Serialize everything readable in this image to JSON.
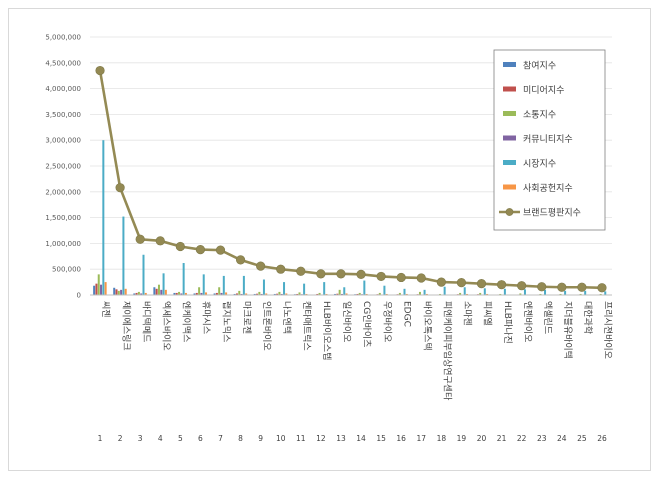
{
  "chart_data": {
    "type": "bar",
    "title": "",
    "xlabel": "",
    "ylabel": "",
    "ylim": [
      0,
      5000000
    ],
    "yticks": [
      "0",
      "500,000",
      "1,000,000",
      "1,500,000",
      "2,000,000",
      "2,500,000",
      "3,000,000",
      "3,500,000",
      "4,000,000",
      "4,500,000",
      "5,000,000"
    ],
    "ytick_values": [
      0,
      500000,
      1000000,
      1500000,
      2000000,
      2500000,
      3000000,
      3500000,
      4000000,
      4500000,
      5000000
    ],
    "legend_position": "top-right",
    "categories": [
      "씨젠",
      "제이에스링크",
      "바디텍메드",
      "엑세스바이오",
      "엔케이맥스",
      "휴마시스",
      "랩지노믹스",
      "마크로젠",
      "인트론바이오",
      "나노엔텍",
      "켄타매트릭스",
      "HLB바이오스텝",
      "일신바이오",
      "CG인바이츠",
      "우정바이오",
      "EDGC",
      "바이오톡스텍",
      "피엔케이피부임상연구센타",
      "소마젠",
      "피씨엘",
      "HLB파나진",
      "엔젠바이오",
      "엑셀린드",
      "지더블유바이텍",
      "대한과학",
      "프리시젼바이오"
    ],
    "indices": [
      "1",
      "2",
      "3",
      "4",
      "5",
      "6",
      "7",
      "8",
      "9",
      "10",
      "11",
      "12",
      "13",
      "14",
      "15",
      "16",
      "17",
      "18",
      "19",
      "20",
      "21",
      "22",
      "23",
      "24",
      "25",
      "26"
    ],
    "series": [
      {
        "name": "참여지수",
        "kind": "bar",
        "color": "#4f81bd",
        "values": [
          180000,
          140000,
          30000,
          150000,
          40000,
          30000,
          30000,
          20000,
          20000,
          20000,
          15000,
          10000,
          20000,
          15000,
          10000,
          10000,
          10000,
          5000,
          10000,
          10000,
          5000,
          5000,
          5000,
          5000,
          5000,
          5000
        ]
      },
      {
        "name": "미디어지수",
        "kind": "bar",
        "color": "#c0504d",
        "values": [
          220000,
          110000,
          40000,
          120000,
          40000,
          40000,
          40000,
          30000,
          25000,
          25000,
          20000,
          20000,
          25000,
          20000,
          15000,
          15000,
          15000,
          10000,
          15000,
          15000,
          10000,
          10000,
          10000,
          10000,
          10000,
          10000
        ]
      },
      {
        "name": "소통지수",
        "kind": "bar",
        "color": "#9bbb59",
        "values": [
          400000,
          80000,
          60000,
          200000,
          60000,
          150000,
          150000,
          80000,
          60000,
          60000,
          50000,
          40000,
          100000,
          40000,
          40000,
          40000,
          60000,
          20000,
          40000,
          40000,
          20000,
          30000,
          20000,
          20000,
          20000,
          20000
        ]
      },
      {
        "name": "커뮤니티지수",
        "kind": "bar",
        "color": "#8064a2",
        "values": [
          200000,
          100000,
          30000,
          100000,
          30000,
          40000,
          40000,
          20000,
          20000,
          20000,
          15000,
          10000,
          20000,
          15000,
          10000,
          10000,
          10000,
          5000,
          10000,
          10000,
          5000,
          5000,
          5000,
          5000,
          5000,
          5000
        ]
      },
      {
        "name": "시장지수",
        "kind": "bar",
        "color": "#4bacc6",
        "values": [
          3000000,
          1520000,
          780000,
          420000,
          620000,
          400000,
          370000,
          370000,
          300000,
          250000,
          220000,
          250000,
          150000,
          280000,
          180000,
          120000,
          100000,
          160000,
          150000,
          130000,
          120000,
          110000,
          100000,
          80000,
          80000,
          70000
        ]
      },
      {
        "name": "사회공헌지수",
        "kind": "bar",
        "color": "#f79646",
        "values": [
          250000,
          120000,
          40000,
          100000,
          40000,
          50000,
          50000,
          30000,
          30000,
          30000,
          20000,
          20000,
          30000,
          20000,
          20000,
          20000,
          20000,
          10000,
          20000,
          20000,
          10000,
          10000,
          10000,
          10000,
          10000,
          10000
        ]
      },
      {
        "name": "브랜드평판지수",
        "kind": "line",
        "color": "#948a54",
        "marker_color": "#938953",
        "values": [
          4350000,
          2080000,
          1080000,
          1050000,
          940000,
          880000,
          870000,
          680000,
          560000,
          500000,
          460000,
          410000,
          410000,
          400000,
          360000,
          340000,
          330000,
          250000,
          240000,
          220000,
          200000,
          180000,
          160000,
          150000,
          150000,
          140000
        ]
      }
    ]
  }
}
